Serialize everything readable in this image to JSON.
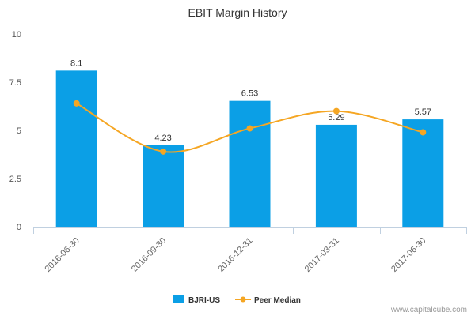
{
  "chart_data": {
    "type": "bar",
    "title": "EBIT Margin History",
    "categories": [
      "2016-06-30",
      "2016-09-30",
      "2016-12-31",
      "2017-03-31",
      "2017-06-30"
    ],
    "series": [
      {
        "name": "BJRI-US",
        "kind": "bar",
        "color": "#0b9fe6",
        "values": [
          8.1,
          4.23,
          6.53,
          5.29,
          5.57
        ],
        "labels": [
          "8.1",
          "4.23",
          "6.53",
          "5.29",
          "5.57"
        ]
      },
      {
        "name": "Peer Median",
        "kind": "line",
        "color": "#f5a623",
        "values": [
          6.4,
          3.9,
          5.1,
          6.0,
          4.9
        ]
      }
    ],
    "ylim": [
      0,
      10
    ],
    "yticks": [
      {
        "value": 0,
        "label": "0"
      },
      {
        "value": 2.5,
        "label": "2.5"
      },
      {
        "value": 5,
        "label": "5"
      },
      {
        "value": 7.5,
        "label": "7.5"
      },
      {
        "value": 10,
        "label": "10"
      }
    ],
    "grid": false,
    "legend": "bottom-center"
  },
  "credit": "www.capitalcube.com"
}
